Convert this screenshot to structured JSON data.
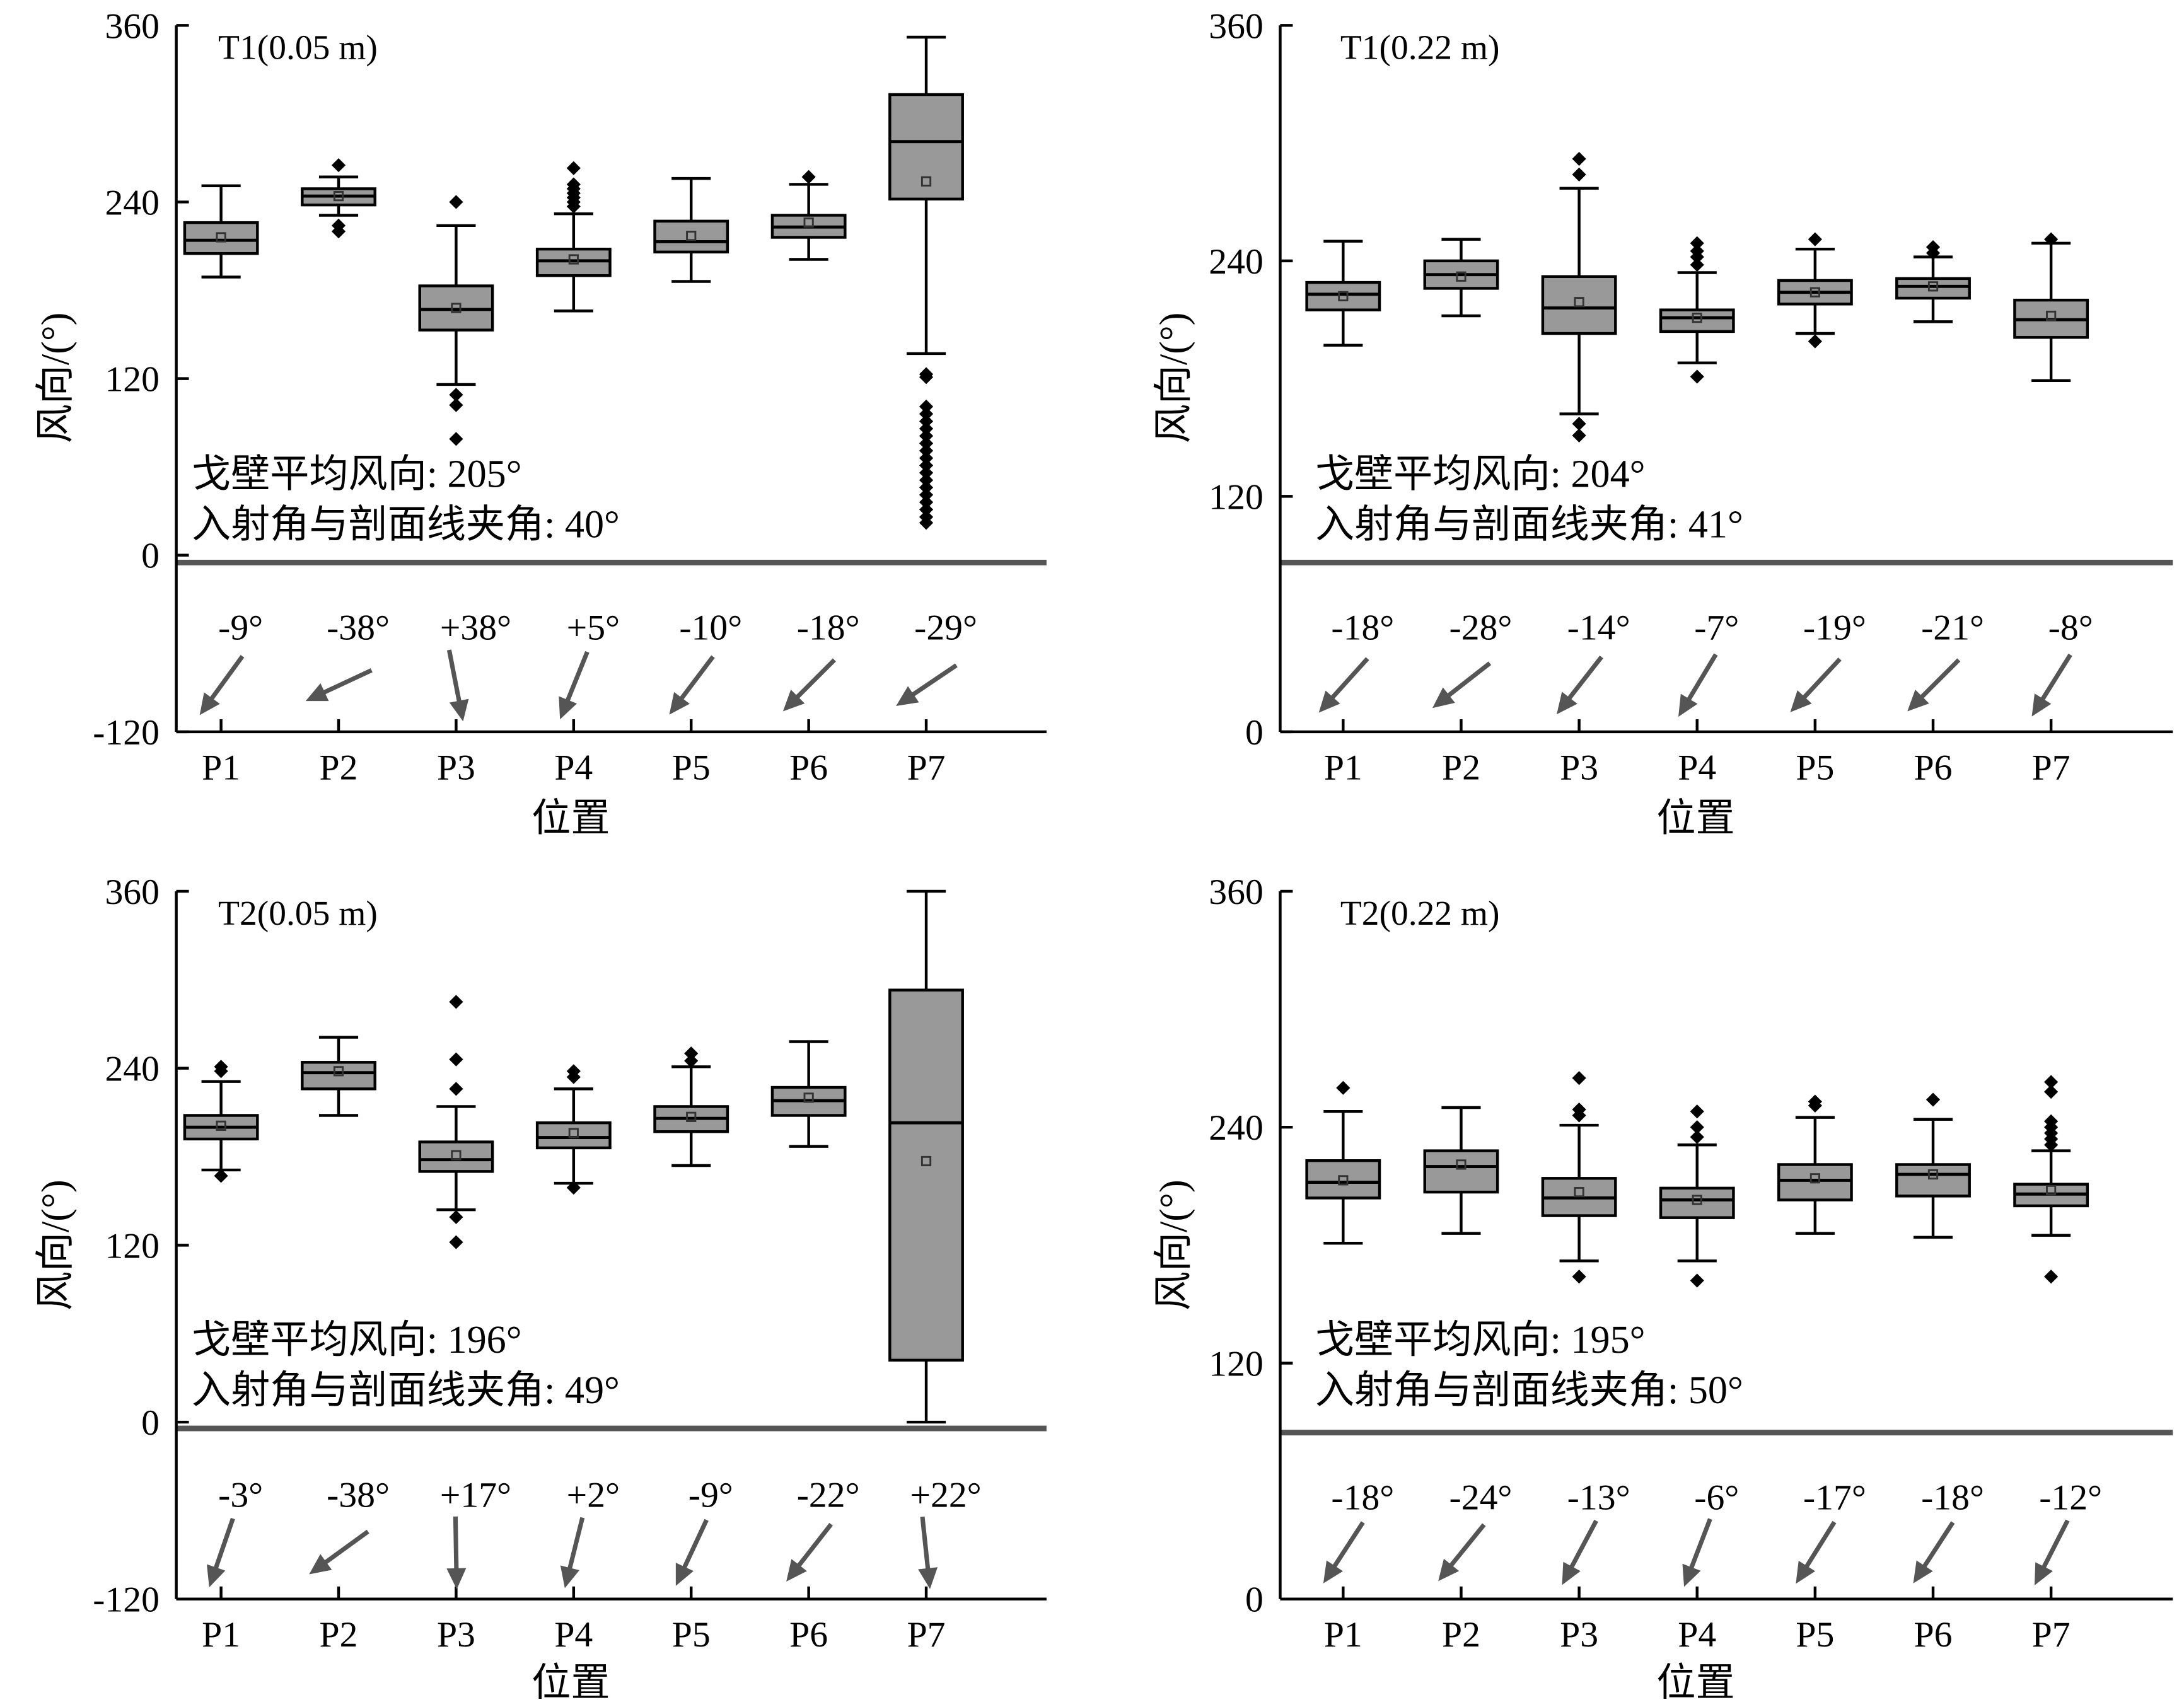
{
  "colors": {
    "box_fill": "#999999",
    "box_edge": "#000000",
    "outlier": "#000000",
    "mean_marker": "#333333",
    "arrow": "#555555",
    "separator": "#555555"
  },
  "chart_data": [
    {
      "type": "box",
      "title": "T1(0.05 m)",
      "xlabel": "位置",
      "ylabel": "风向/(°)",
      "ylim": [
        -120,
        360
      ],
      "yticks": [
        360,
        240,
        120,
        0,
        -120
      ],
      "grid": false,
      "categories": [
        "P1",
        "P2",
        "P3",
        "P4",
        "P5",
        "P6",
        "P7"
      ],
      "boxes": [
        {
          "whisker_low": 189,
          "q1": 205,
          "median": 214,
          "q3": 226,
          "whisker_high": 251,
          "mean": 216,
          "outliers": []
        },
        {
          "whisker_low": 231,
          "q1": 238,
          "median": 244,
          "q3": 249,
          "whisker_high": 257,
          "mean": 244,
          "outliers": [
            265,
            224,
            220
          ]
        },
        {
          "whisker_low": 116,
          "q1": 153,
          "median": 167,
          "q3": 183,
          "whisker_high": 224,
          "mean": 168,
          "outliers": [
            240,
            109,
            102,
            79
          ]
        },
        {
          "whisker_low": 166,
          "q1": 190,
          "median": 200,
          "q3": 208,
          "whisker_high": 232,
          "mean": 201,
          "outliers": [
            263,
            252,
            249,
            246,
            243,
            240,
            237
          ]
        },
        {
          "whisker_low": 186,
          "q1": 206,
          "median": 213,
          "q3": 227,
          "whisker_high": 256,
          "mean": 217,
          "outliers": []
        },
        {
          "whisker_low": 201,
          "q1": 216,
          "median": 223,
          "q3": 231,
          "whisker_high": 252,
          "mean": 226,
          "outliers": [
            257
          ]
        },
        {
          "whisker_low": 137,
          "q1": 242,
          "median": 281,
          "q3": 313,
          "whisker_high": 352,
          "mean": 254,
          "outliers": [
            123,
            121,
            101,
            96,
            91,
            86,
            81,
            76,
            71,
            66,
            61,
            56,
            51,
            46,
            41,
            36,
            31,
            26,
            22
          ]
        }
      ],
      "annotations": [
        "戈壁平均风向: 205°",
        "入射角与剖面线夹角: 40°"
      ],
      "arrow_labels": [
        "-9°",
        "-38°",
        "+38°",
        "+5°",
        "-10°",
        "-18°",
        "-29°"
      ]
    },
    {
      "type": "box",
      "title": "T1(0.22 m)",
      "xlabel": "位置",
      "ylabel": "风向/(°)",
      "ylim": [
        0,
        360
      ],
      "yticks": [
        360,
        240,
        120,
        0
      ],
      "grid": false,
      "categories": [
        "P1",
        "P2",
        "P3",
        "P4",
        "P5",
        "P6",
        "P7"
      ],
      "boxes": [
        {
          "whisker_low": 197,
          "q1": 215,
          "median": 223,
          "q3": 229,
          "whisker_high": 250,
          "mean": 222,
          "outliers": []
        },
        {
          "whisker_low": 212,
          "q1": 226,
          "median": 233,
          "q3": 240,
          "whisker_high": 251,
          "mean": 232,
          "outliers": []
        },
        {
          "whisker_low": 162,
          "q1": 203,
          "median": 216,
          "q3": 232,
          "whisker_high": 277,
          "mean": 219,
          "outliers": [
            292,
            284,
            157,
            151
          ]
        },
        {
          "whisker_low": 188,
          "q1": 204,
          "median": 211,
          "q3": 215,
          "whisker_high": 234,
          "mean": 211,
          "outliers": [
            249,
            245,
            242,
            238,
            181
          ]
        },
        {
          "whisker_low": 203,
          "q1": 218,
          "median": 224,
          "q3": 230,
          "whisker_high": 246,
          "mean": 224,
          "outliers": [
            251,
            199
          ]
        },
        {
          "whisker_low": 209,
          "q1": 221,
          "median": 227,
          "q3": 231,
          "whisker_high": 242,
          "mean": 227,
          "outliers": [
            247,
            244
          ]
        },
        {
          "whisker_low": 179,
          "q1": 201,
          "median": 210,
          "q3": 220,
          "whisker_high": 249,
          "mean": 212,
          "outliers": [
            251
          ]
        }
      ],
      "annotations": [
        "戈壁平均风向: 204°",
        "入射角与剖面线夹角: 41°"
      ],
      "arrow_labels": [
        "-18°",
        "-28°",
        "-14°",
        "-7°",
        "-19°",
        "-21°",
        "-8°"
      ]
    },
    {
      "type": "box",
      "title": "T2(0.05 m)",
      "xlabel": "位置",
      "ylabel": "风向/(°)",
      "ylim": [
        -120,
        360
      ],
      "yticks": [
        360,
        240,
        120,
        0,
        -120
      ],
      "grid": false,
      "categories": [
        "P1",
        "P2",
        "P3",
        "P4",
        "P5",
        "P6",
        "P7"
      ],
      "boxes": [
        {
          "whisker_low": 171,
          "q1": 192,
          "median": 200,
          "q3": 208,
          "whisker_high": 231,
          "mean": 201,
          "outliers": [
            241,
            238,
            167
          ]
        },
        {
          "whisker_low": 208,
          "q1": 226,
          "median": 237,
          "q3": 244,
          "whisker_high": 261,
          "mean": 238,
          "outliers": []
        },
        {
          "whisker_low": 144,
          "q1": 170,
          "median": 178,
          "q3": 190,
          "whisker_high": 214,
          "mean": 181,
          "outliers": [
            285,
            246,
            226,
            139,
            122
          ]
        },
        {
          "whisker_low": 162,
          "q1": 186,
          "median": 193,
          "q3": 203,
          "whisker_high": 226,
          "mean": 196,
          "outliers": [
            238,
            234,
            159
          ]
        },
        {
          "whisker_low": 174,
          "q1": 197,
          "median": 206,
          "q3": 214,
          "whisker_high": 241,
          "mean": 207,
          "outliers": [
            250,
            245
          ]
        },
        {
          "whisker_low": 187,
          "q1": 208,
          "median": 218,
          "q3": 227,
          "whisker_high": 258,
          "mean": 220,
          "outliers": []
        },
        {
          "whisker_low": 0,
          "q1": 42,
          "median": 203,
          "q3": 293,
          "whisker_high": 360,
          "mean": 177,
          "outliers": []
        }
      ],
      "annotations": [
        "戈壁平均风向: 196°",
        "入射角与剖面线夹角: 49°"
      ],
      "arrow_labels": [
        "-3°",
        "-38°",
        "+17°",
        "+2°",
        "-9°",
        "-22°",
        "+22°"
      ]
    },
    {
      "type": "box",
      "title": "T2(0.22 m)",
      "xlabel": "位置",
      "ylabel": "风向/(°)",
      "ylim": [
        0,
        360
      ],
      "yticks": [
        360,
        240,
        120,
        0
      ],
      "grid": false,
      "categories": [
        "P1",
        "P2",
        "P3",
        "P4",
        "P5",
        "P6",
        "P7"
      ],
      "boxes": [
        {
          "whisker_low": 181,
          "q1": 204,
          "median": 212,
          "q3": 223,
          "whisker_high": 248,
          "mean": 213,
          "outliers": [
            260
          ]
        },
        {
          "whisker_low": 186,
          "q1": 207,
          "median": 220,
          "q3": 228,
          "whisker_high": 250,
          "mean": 221,
          "outliers": []
        },
        {
          "whisker_low": 172,
          "q1": 195,
          "median": 204,
          "q3": 214,
          "whisker_high": 241,
          "mean": 207,
          "outliers": [
            265,
            249,
            246,
            164
          ]
        },
        {
          "whisker_low": 172,
          "q1": 194,
          "median": 203,
          "q3": 209,
          "whisker_high": 231,
          "mean": 203,
          "outliers": [
            248,
            240,
            235,
            162
          ]
        },
        {
          "whisker_low": 186,
          "q1": 203,
          "median": 213,
          "q3": 221,
          "whisker_high": 245,
          "mean": 214,
          "outliers": [
            253,
            251
          ]
        },
        {
          "whisker_low": 184,
          "q1": 205,
          "median": 216,
          "q3": 221,
          "whisker_high": 244,
          "mean": 216,
          "outliers": [
            254
          ]
        },
        {
          "whisker_low": 185,
          "q1": 200,
          "median": 206,
          "q3": 211,
          "whisker_high": 228,
          "mean": 208,
          "outliers": [
            263,
            258,
            243,
            240,
            237,
            234,
            231,
            164
          ]
        }
      ],
      "annotations": [
        "戈壁平均风向: 195°",
        "入射角与剖面线夹角: 50°"
      ],
      "arrow_labels": [
        "-18°",
        "-24°",
        "-13°",
        "-6°",
        "-17°",
        "-18°",
        "-12°"
      ]
    }
  ]
}
